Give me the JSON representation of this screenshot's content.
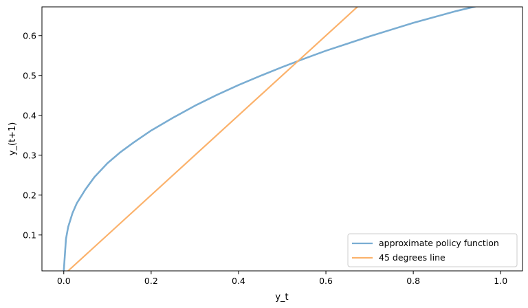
{
  "chart_data": {
    "type": "line",
    "title": "",
    "xlabel": "y_t",
    "ylabel": "y_(t+1)",
    "xlim": [
      -0.05,
      1.05
    ],
    "ylim": [
      0.01,
      0.672
    ],
    "x_ticks": [
      "0.0",
      "0.2",
      "0.4",
      "0.6",
      "0.8",
      "1.0"
    ],
    "x_tick_values": [
      0.0,
      0.2,
      0.4,
      0.6,
      0.8,
      1.0
    ],
    "y_ticks": [
      "0.1",
      "0.2",
      "0.3",
      "0.4",
      "0.5",
      "0.6"
    ],
    "y_tick_values": [
      0.1,
      0.2,
      0.3,
      0.4,
      0.5,
      0.6
    ],
    "grid": false,
    "legend_position": "bottom-right",
    "series": [
      {
        "name": "approximate policy function",
        "color": "#7aadd2",
        "x": [
          0.0,
          0.005,
          0.01,
          0.02,
          0.03,
          0.05,
          0.07,
          0.1,
          0.13,
          0.16,
          0.2,
          0.25,
          0.3,
          0.35,
          0.4,
          0.45,
          0.5,
          0.55,
          0.6,
          0.65,
          0.7,
          0.75,
          0.8,
          0.85,
          0.9,
          0.95,
          1.0
        ],
        "y": [
          0.01,
          0.09,
          0.12,
          0.155,
          0.18,
          0.215,
          0.245,
          0.28,
          0.308,
          0.332,
          0.362,
          0.394,
          0.424,
          0.451,
          0.476,
          0.499,
          0.521,
          0.542,
          0.562,
          0.58,
          0.598,
          0.615,
          0.632,
          0.647,
          0.662,
          0.675,
          0.688
        ]
      },
      {
        "name": "45 degrees line",
        "color": "#fbb26c",
        "x": [
          0.0,
          0.672
        ],
        "y": [
          0.0,
          0.672
        ]
      }
    ]
  }
}
